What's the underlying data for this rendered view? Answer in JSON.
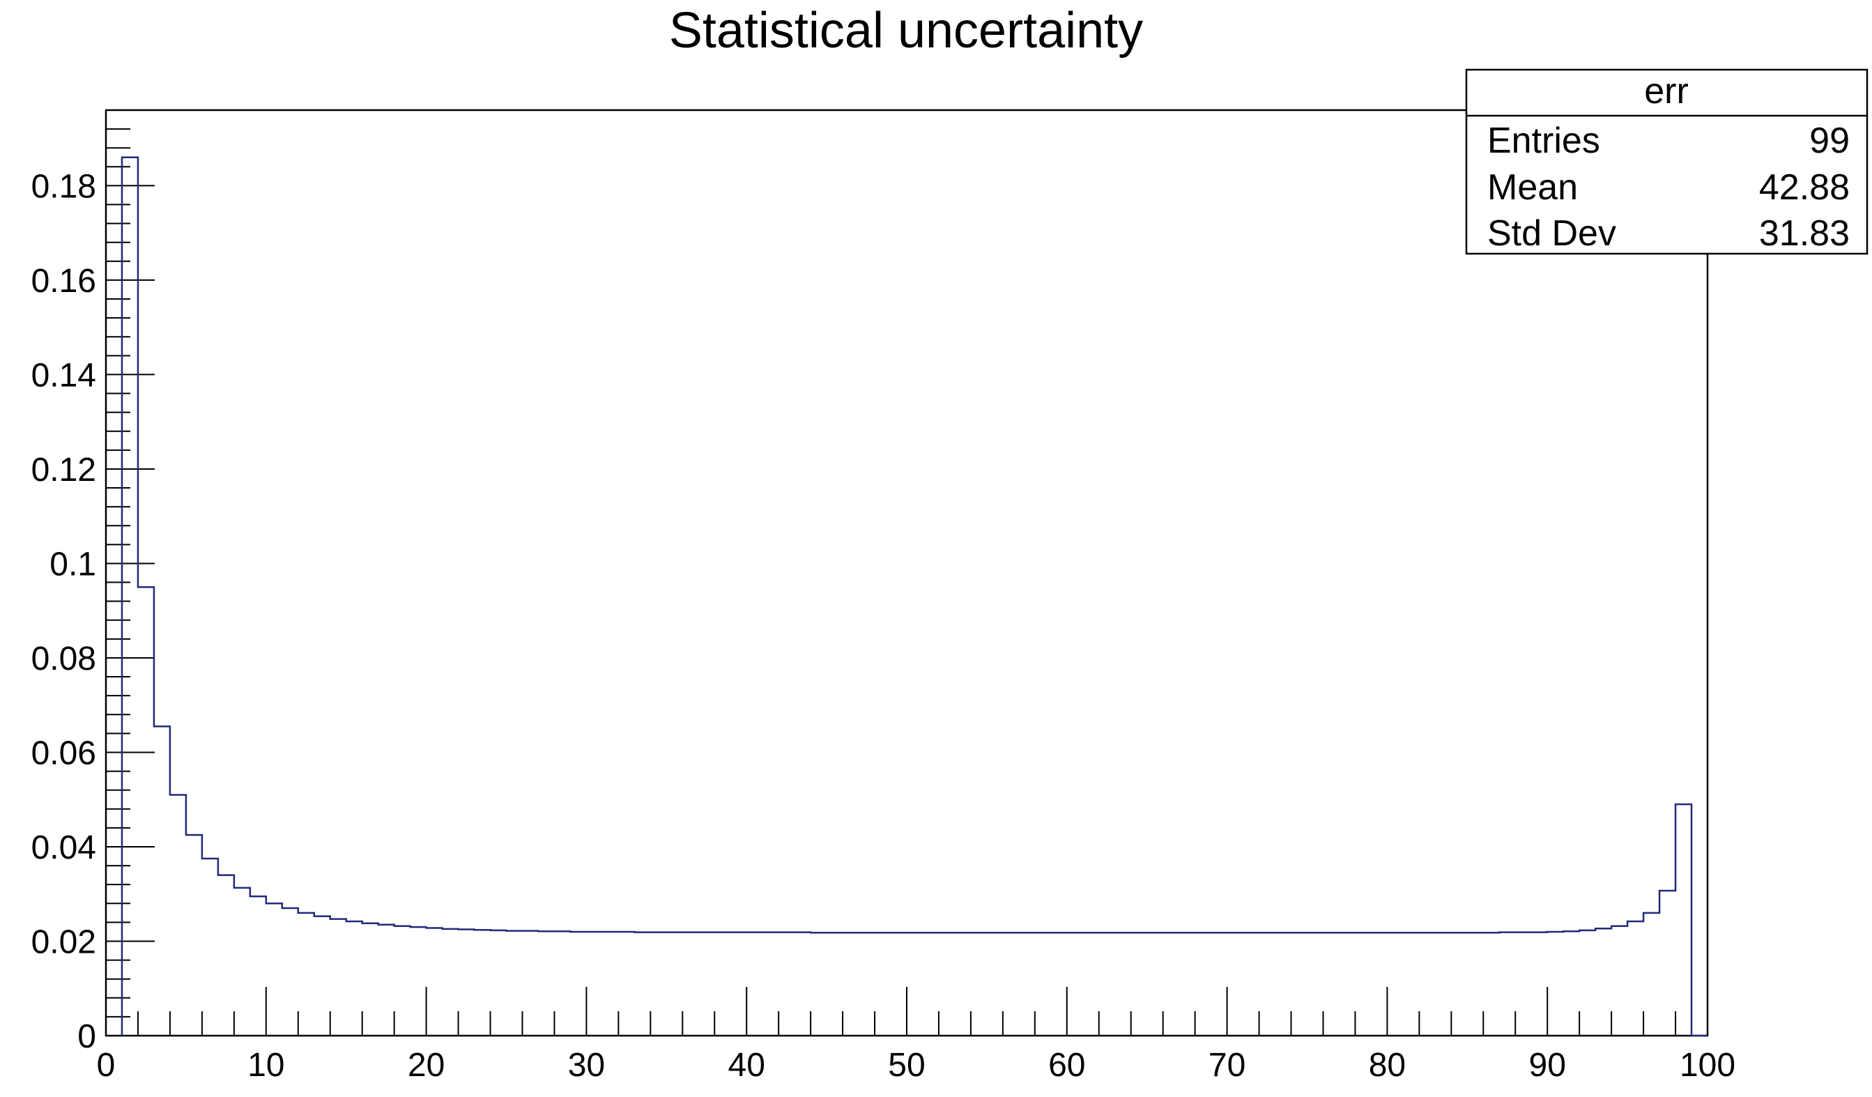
{
  "colors": {
    "histogram_line": "#1f2a7a",
    "axis": "#000000",
    "background": "#ffffff"
  },
  "stats_box": {
    "name": "err",
    "rows": [
      {
        "label": "Entries",
        "value": "99"
      },
      {
        "label": "Mean",
        "value": "42.88"
      },
      {
        "label": "Std Dev",
        "value": "31.83"
      }
    ]
  },
  "chart_data": {
    "type": "histogram",
    "title": "Statistical uncertainty",
    "xlabel": "",
    "ylabel": "",
    "xlim": [
      0,
      100
    ],
    "ylim": [
      0,
      0.196
    ],
    "bin_edges_start": 1,
    "bin_width": 1,
    "values": [
      0.186,
      0.095,
      0.0655,
      0.051,
      0.0425,
      0.0375,
      0.034,
      0.0313,
      0.0295,
      0.028,
      0.027,
      0.026,
      0.0253,
      0.0247,
      0.0242,
      0.0238,
      0.0235,
      0.0232,
      0.023,
      0.0228,
      0.0226,
      0.0225,
      0.0224,
      0.0223,
      0.0222,
      0.0222,
      0.0221,
      0.0221,
      0.022,
      0.022,
      0.022,
      0.022,
      0.0219,
      0.0219,
      0.0219,
      0.0219,
      0.0219,
      0.0219,
      0.0219,
      0.0219,
      0.0219,
      0.0219,
      0.0219,
      0.0218,
      0.0218,
      0.0218,
      0.0218,
      0.0218,
      0.0218,
      0.0218,
      0.0218,
      0.0218,
      0.0218,
      0.0218,
      0.0218,
      0.0218,
      0.0218,
      0.0218,
      0.0218,
      0.0218,
      0.0218,
      0.0218,
      0.0218,
      0.0218,
      0.0218,
      0.0218,
      0.0218,
      0.0218,
      0.0218,
      0.0218,
      0.0218,
      0.0218,
      0.0218,
      0.0218,
      0.0218,
      0.0218,
      0.0218,
      0.0218,
      0.0218,
      0.0218,
      0.0218,
      0.0218,
      0.0218,
      0.0218,
      0.0218,
      0.0218,
      0.0219,
      0.0219,
      0.0219,
      0.022,
      0.0221,
      0.0223,
      0.0227,
      0.0232,
      0.0242,
      0.026,
      0.0307,
      0.049,
      0.0
    ],
    "xticks": [
      0,
      10,
      20,
      30,
      40,
      50,
      60,
      70,
      80,
      90,
      100
    ],
    "xtick_labels": [
      "0",
      "10",
      "20",
      "30",
      "40",
      "50",
      "60",
      "70",
      "80",
      "90",
      "100"
    ],
    "yticks": [
      0,
      0.02,
      0.04,
      0.06,
      0.08,
      0.1,
      0.12,
      0.14,
      0.16,
      0.18
    ],
    "ytick_labels": [
      "0",
      "0.02",
      "0.04",
      "0.06",
      "0.08",
      "0.1",
      "0.12",
      "0.14",
      "0.16",
      "0.18"
    ],
    "x_minor_step": 2,
    "y_minor_step": 0.004,
    "grid": false,
    "legend": "none",
    "stats_box_placement": "top-right"
  }
}
